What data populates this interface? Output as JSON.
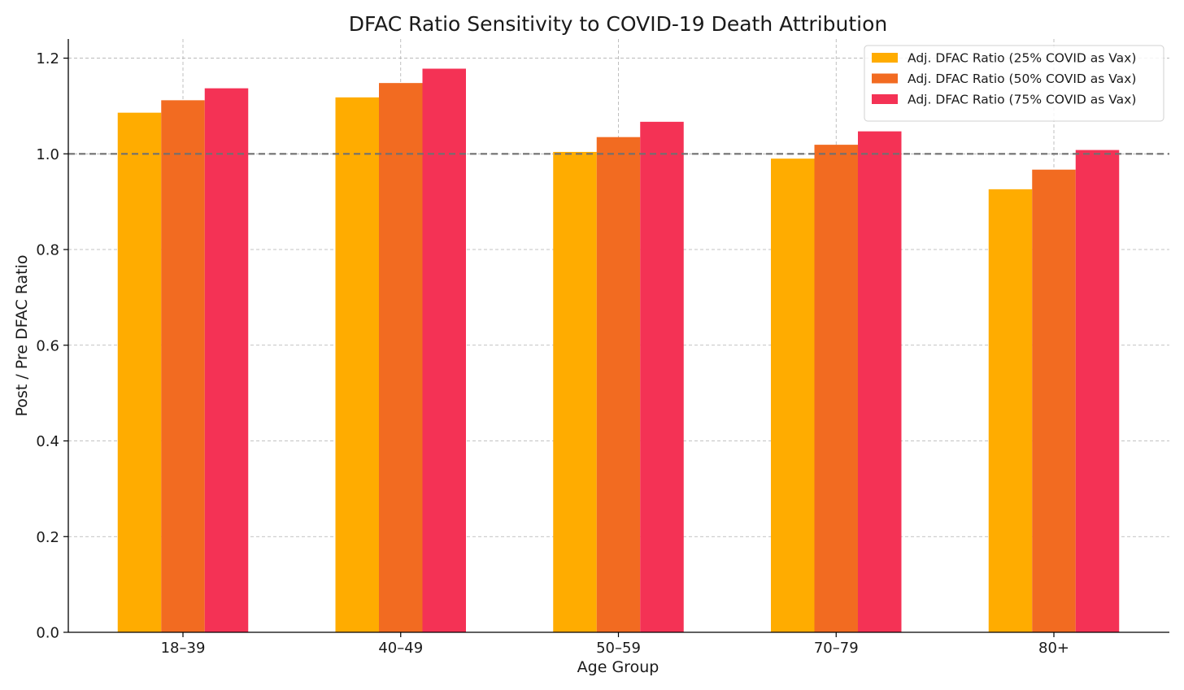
{
  "chart_data": {
    "type": "bar",
    "title": "DFAC Ratio Sensitivity to COVID-19 Death Attribution",
    "xlabel": "Age Group",
    "ylabel": "Post / Pre DFAC Ratio",
    "categories": [
      "18–39",
      "40–49",
      "50–59",
      "70–79",
      "80+"
    ],
    "series": [
      {
        "name": "Adj. DFAC Ratio (25% COVID as Vax)",
        "color": "#FFAC00",
        "values": [
          1.086,
          1.118,
          1.004,
          0.99,
          0.926
        ]
      },
      {
        "name": "Adj. DFAC Ratio (50% COVID as Vax)",
        "color": "#F26B21",
        "values": [
          1.112,
          1.148,
          1.035,
          1.019,
          0.967
        ]
      },
      {
        "name": "Adj. DFAC Ratio (75% COVID as Vax)",
        "color": "#F43255",
        "values": [
          1.137,
          1.178,
          1.067,
          1.047,
          1.008
        ]
      }
    ],
    "ylim": [
      0,
      1.24
    ],
    "yticks": [
      0.0,
      0.2,
      0.4,
      0.6,
      0.8,
      1.0,
      1.2
    ],
    "ytick_labels": [
      "0.0",
      "0.2",
      "0.4",
      "0.6",
      "0.8",
      "1.0",
      "1.2"
    ],
    "reference_line": {
      "y": 1.0,
      "style": "dashed",
      "color": "#707070"
    },
    "grid": true,
    "legend_position": "top-right"
  }
}
